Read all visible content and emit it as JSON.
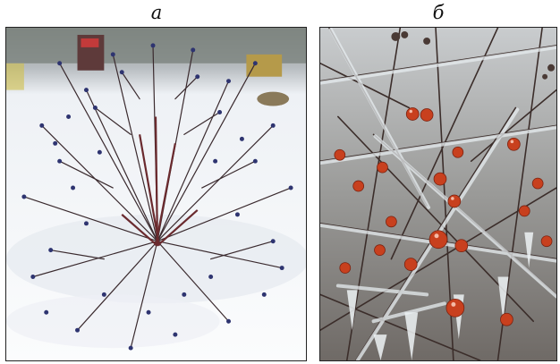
{
  "panels": [
    {
      "label": "а"
    },
    {
      "label": "б"
    }
  ],
  "colors": {
    "snow": "#f7f8fb",
    "branch_dark": "#3a2a2e",
    "berry_blue": "#2e3470",
    "berry_red": "#c8401e",
    "ice": "#dfe6ea"
  }
}
